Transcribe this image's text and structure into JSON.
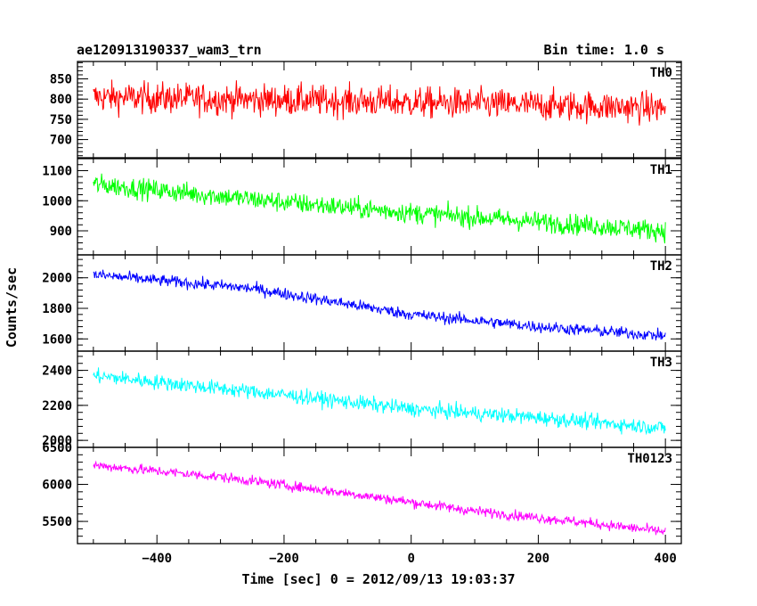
{
  "chart_data": {
    "type": "line",
    "title": "ae120913190337_wam3_trn",
    "bin_time_label": "Bin time: 1.0 s",
    "xlabel": "Time [sec] 0 = 2012/09/13 19:03:37",
    "ylabel": "Counts/sec",
    "x_range": [
      -500,
      400
    ],
    "xlim": [
      -525,
      425
    ],
    "x_ticks": [
      -400,
      -200,
      0,
      200,
      400
    ],
    "x_tick_labels": [
      "−400",
      "−200",
      "0",
      "200",
      "400"
    ],
    "panels": [
      {
        "name": "TH0",
        "color": "#ff0000",
        "ylim": [
          655,
          893
        ],
        "y_ticks": [
          700,
          750,
          800,
          850
        ],
        "y_tick_labels": [
          "700",
          "750",
          "800",
          "850"
        ],
        "trend": [
          [
            -500,
            805
          ],
          [
            -100,
            795
          ],
          [
            400,
            778
          ]
        ],
        "noise": 45
      },
      {
        "name": "TH1",
        "color": "#00ff00",
        "ylim": [
          820,
          1140
        ],
        "y_ticks": [
          900,
          1000,
          1100
        ],
        "y_tick_labels": [
          "900",
          "1000",
          "1100"
        ],
        "trend": [
          [
            -500,
            1055
          ],
          [
            -200,
            995
          ],
          [
            0,
            960
          ],
          [
            200,
            930
          ],
          [
            400,
            900
          ]
        ],
        "noise": 40
      },
      {
        "name": "TH2",
        "color": "#0000ff",
        "ylim": [
          1520,
          2150
        ],
        "y_ticks": [
          1600,
          1800,
          2000
        ],
        "y_tick_labels": [
          "1600",
          "1800",
          "2000"
        ],
        "trend": [
          [
            -500,
            2020
          ],
          [
            -250,
            1930
          ],
          [
            0,
            1760
          ],
          [
            200,
            1680
          ],
          [
            400,
            1620
          ]
        ],
        "noise": 45
      },
      {
        "name": "TH3",
        "color": "#00ffff",
        "ylim": [
          1960,
          2510
        ],
        "y_ticks": [
          2000,
          2200,
          2400
        ],
        "y_tick_labels": [
          "2000",
          "2200",
          "2400"
        ],
        "trend": [
          [
            -500,
            2370
          ],
          [
            -200,
            2260
          ],
          [
            0,
            2180
          ],
          [
            200,
            2130
          ],
          [
            400,
            2070
          ]
        ],
        "noise": 50
      },
      {
        "name": "TH0123",
        "color": "#ff00ff",
        "ylim": [
          5200,
          6500
        ],
        "y_ticks": [
          5500,
          6000,
          6500
        ],
        "y_tick_labels": [
          "5500",
          "6000",
          "6500"
        ],
        "trend": [
          [
            -500,
            6260
          ],
          [
            -300,
            6100
          ],
          [
            -100,
            5880
          ],
          [
            100,
            5640
          ],
          [
            300,
            5460
          ],
          [
            400,
            5360
          ]
        ],
        "noise": 80
      }
    ]
  }
}
